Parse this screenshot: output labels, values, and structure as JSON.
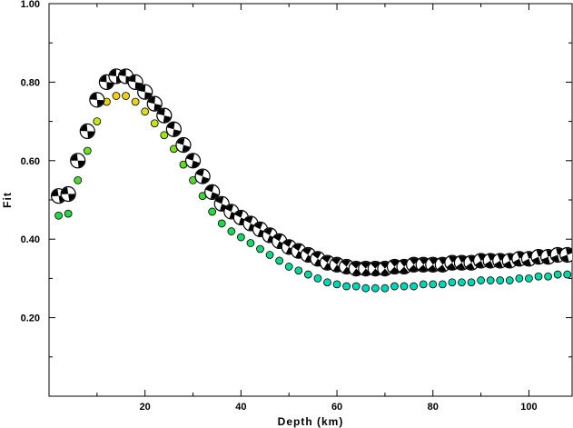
{
  "chart_data": {
    "type": "scatter",
    "title": "",
    "xlabel": "Depth (km)",
    "ylabel": "Fit",
    "xlim": [
      0,
      109
    ],
    "ylim": [
      0,
      1.0
    ],
    "x_ticks": [
      20,
      40,
      60,
      80,
      100
    ],
    "x_tick_labels": [
      "20",
      "40",
      "60",
      "80",
      "100"
    ],
    "y_ticks": [
      0.2,
      0.4,
      0.6,
      0.8,
      1.0
    ],
    "y_tick_labels": [
      "0.20",
      "0.40",
      "0.60",
      "0.80",
      "1.00"
    ],
    "grid": false,
    "legend": "none",
    "series": [
      {
        "marker": "focal-mechanism",
        "x": [
          2,
          4,
          6,
          8,
          10,
          12,
          14,
          16,
          18,
          20,
          22,
          24,
          26,
          28,
          30,
          32,
          34,
          36,
          38,
          40,
          42,
          44,
          46,
          48,
          50,
          52,
          54,
          56,
          58,
          60,
          62,
          64,
          66,
          68,
          70,
          72,
          74,
          76,
          78,
          80,
          82,
          84,
          86,
          88,
          90,
          92,
          94,
          96,
          98,
          100,
          102,
          104,
          106,
          108
        ],
        "y": [
          0.51,
          0.515,
          0.6,
          0.675,
          0.755,
          0.8,
          0.815,
          0.815,
          0.8,
          0.775,
          0.745,
          0.715,
          0.68,
          0.64,
          0.6,
          0.56,
          0.52,
          0.49,
          0.47,
          0.455,
          0.44,
          0.425,
          0.41,
          0.395,
          0.38,
          0.37,
          0.36,
          0.35,
          0.34,
          0.335,
          0.33,
          0.325,
          0.325,
          0.325,
          0.325,
          0.33,
          0.33,
          0.335,
          0.335,
          0.335,
          0.335,
          0.34,
          0.34,
          0.34,
          0.345,
          0.345,
          0.345,
          0.345,
          0.35,
          0.35,
          0.355,
          0.355,
          0.36,
          0.36
        ]
      },
      {
        "marker": "colored-dot",
        "x": [
          2,
          4,
          6,
          8,
          10,
          12,
          14,
          16,
          18,
          20,
          22,
          24,
          26,
          28,
          30,
          32,
          34,
          36,
          38,
          40,
          42,
          44,
          46,
          48,
          50,
          52,
          54,
          56,
          58,
          60,
          62,
          64,
          66,
          68,
          70,
          72,
          74,
          76,
          78,
          80,
          82,
          84,
          86,
          88,
          90,
          92,
          94,
          96,
          98,
          100,
          102,
          104,
          106,
          108
        ],
        "y": [
          0.46,
          0.465,
          0.55,
          0.625,
          0.7,
          0.75,
          0.765,
          0.765,
          0.75,
          0.725,
          0.695,
          0.665,
          0.63,
          0.59,
          0.55,
          0.51,
          0.47,
          0.44,
          0.42,
          0.405,
          0.39,
          0.375,
          0.36,
          0.345,
          0.33,
          0.32,
          0.31,
          0.3,
          0.29,
          0.285,
          0.28,
          0.28,
          0.275,
          0.275,
          0.275,
          0.28,
          0.28,
          0.28,
          0.285,
          0.285,
          0.285,
          0.29,
          0.29,
          0.29,
          0.295,
          0.295,
          0.295,
          0.295,
          0.3,
          0.3,
          0.305,
          0.305,
          0.31,
          0.31
        ]
      }
    ]
  }
}
